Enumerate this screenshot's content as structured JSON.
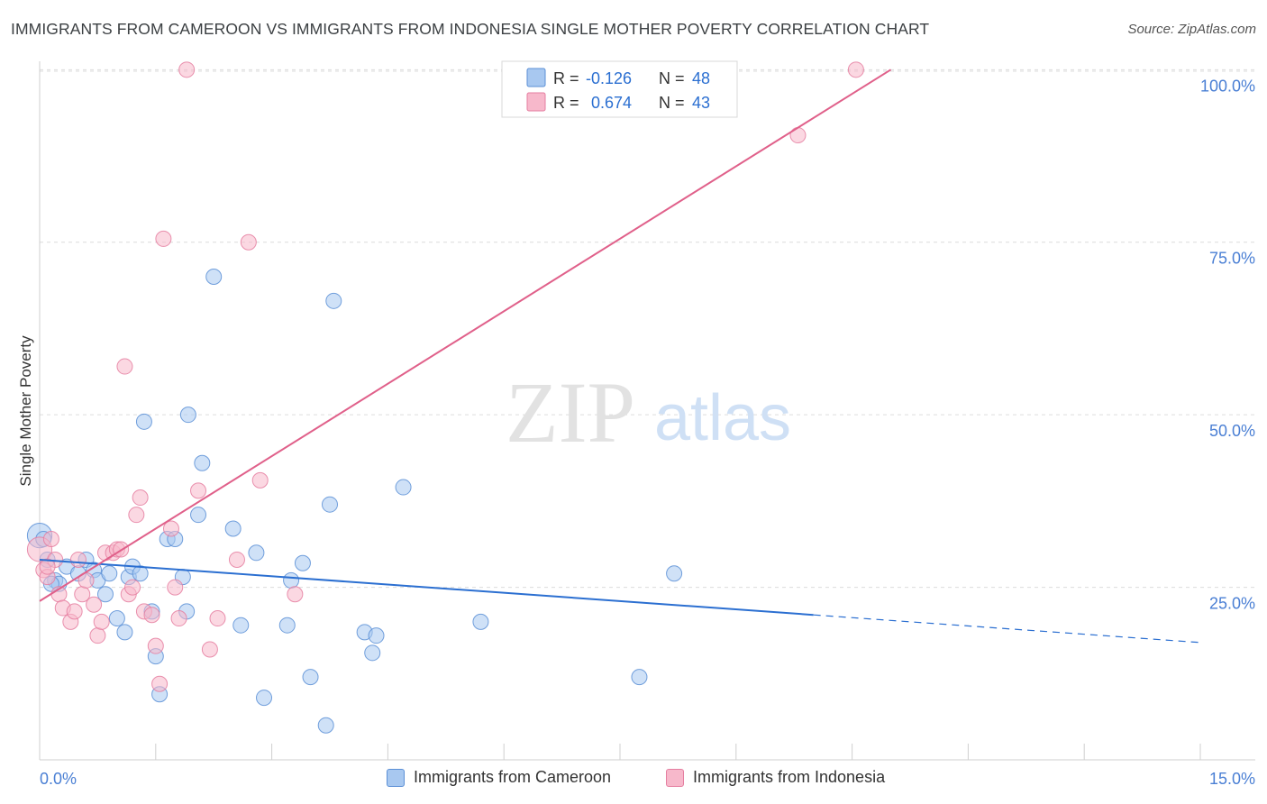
{
  "title": "IMMIGRANTS FROM CAMEROON VS IMMIGRANTS FROM INDONESIA SINGLE MOTHER POVERTY CORRELATION CHART",
  "source": "Source: ZipAtlas.com",
  "watermark": {
    "zip": "ZIP",
    "atlas": "atlas"
  },
  "colors": {
    "cameroon_fill": "#a8c8f0",
    "cameroon_stroke": "#5b8fd6",
    "cameroon_line": "#2b6fd1",
    "indonesia_fill": "#f7b8cb",
    "indonesia_stroke": "#e57ea0",
    "indonesia_line": "#e0608a",
    "tick_label": "#4a7fd4",
    "grid": "#dcdcdc"
  },
  "chart_data": {
    "type": "scatter",
    "title": "IMMIGRANTS FROM CAMEROON VS IMMIGRANTS FROM INDONESIA SINGLE MOTHER POVERTY CORRELATION CHART",
    "xlabel": "",
    "ylabel": "Single Mother Poverty",
    "xlim": [
      0,
      15
    ],
    "ylim": [
      0,
      102
    ],
    "x_tick_labels": [
      {
        "value": 0,
        "label": "0.0%"
      },
      {
        "value": 15,
        "label": "15.0%"
      }
    ],
    "y_ticks": [
      {
        "value": 25,
        "label": "25.0%"
      },
      {
        "value": 50,
        "label": "50.0%"
      },
      {
        "value": 75,
        "label": "75.0%"
      },
      {
        "value": 100,
        "label": "100.0%"
      }
    ],
    "legend": {
      "rows": [
        {
          "r_label": "R =",
          "r_value": "-0.126",
          "n_label": "N =",
          "n_value": "48"
        },
        {
          "r_label": "R =",
          "r_value": "0.674",
          "n_label": "N =",
          "n_value": "43"
        }
      ]
    },
    "series": [
      {
        "name": "Immigrants from Cameroon",
        "trend": {
          "x0": 0,
          "y0": 29.0,
          "x1": 10.0,
          "y1": 21.0,
          "dash_to_x": 15.0,
          "dash_to_y": 17.0
        },
        "points": [
          [
            0.0,
            32.5,
            1.6
          ],
          [
            0.05,
            32.0,
            1.0
          ],
          [
            0.1,
            29.0,
            1.0
          ],
          [
            0.2,
            26.0,
            1.0
          ],
          [
            0.25,
            25.5,
            1.0
          ],
          [
            0.35,
            28.0,
            1.0
          ],
          [
            0.5,
            27.0,
            1.0
          ],
          [
            0.6,
            29.0,
            1.0
          ],
          [
            0.7,
            27.5,
            1.0
          ],
          [
            0.75,
            26.0,
            1.0
          ],
          [
            0.85,
            24.0,
            1.0
          ],
          [
            0.9,
            27.0,
            1.0
          ],
          [
            1.0,
            20.5,
            1.0
          ],
          [
            1.1,
            18.5,
            1.0
          ],
          [
            1.15,
            26.5,
            1.0
          ],
          [
            1.2,
            28.0,
            1.0
          ],
          [
            1.3,
            27.0,
            1.0
          ],
          [
            1.35,
            49.0,
            1.0
          ],
          [
            1.45,
            21.5,
            1.0
          ],
          [
            1.5,
            15.0,
            1.0
          ],
          [
            1.55,
            9.5,
            1.0
          ],
          [
            1.65,
            32.0,
            1.0
          ],
          [
            1.75,
            32.0,
            1.0
          ],
          [
            1.85,
            26.5,
            1.0
          ],
          [
            1.9,
            21.5,
            1.0
          ],
          [
            1.92,
            50.0,
            1.0
          ],
          [
            2.05,
            35.5,
            1.0
          ],
          [
            2.1,
            43.0,
            1.0
          ],
          [
            2.25,
            70.0,
            1.0
          ],
          [
            2.5,
            33.5,
            1.0
          ],
          [
            2.6,
            19.5,
            1.0
          ],
          [
            2.8,
            30.0,
            1.0
          ],
          [
            2.9,
            9.0,
            1.0
          ],
          [
            3.2,
            19.5,
            1.0
          ],
          [
            3.25,
            26.0,
            1.0
          ],
          [
            3.4,
            28.5,
            1.0
          ],
          [
            3.5,
            12.0,
            1.0
          ],
          [
            3.7,
            5.0,
            1.0
          ],
          [
            3.75,
            37.0,
            1.0
          ],
          [
            3.8,
            66.5,
            1.0
          ],
          [
            4.2,
            18.5,
            1.0
          ],
          [
            4.3,
            15.5,
            1.0
          ],
          [
            4.35,
            18.0,
            1.0
          ],
          [
            4.7,
            39.5,
            1.0
          ],
          [
            5.7,
            20.0,
            1.0
          ],
          [
            7.75,
            12.0,
            1.0
          ],
          [
            8.2,
            27.0,
            1.0
          ],
          [
            0.15,
            25.5,
            1.0
          ]
        ]
      },
      {
        "name": "Immigrants from Indonesia",
        "trend": {
          "x0": 0,
          "y0": 23.0,
          "x1": 11.0,
          "y1": 100.0
        },
        "points": [
          [
            0.0,
            30.5,
            1.6
          ],
          [
            0.05,
            27.5,
            1.0
          ],
          [
            0.1,
            26.5,
            1.0
          ],
          [
            0.15,
            32.0,
            1.0
          ],
          [
            0.2,
            29.0,
            1.0
          ],
          [
            0.25,
            24.0,
            1.0
          ],
          [
            0.3,
            22.0,
            1.0
          ],
          [
            0.4,
            20.0,
            1.0
          ],
          [
            0.45,
            21.5,
            1.0
          ],
          [
            0.5,
            29.0,
            1.0
          ],
          [
            0.55,
            24.0,
            1.0
          ],
          [
            0.6,
            26.0,
            1.0
          ],
          [
            0.7,
            22.5,
            1.0
          ],
          [
            0.75,
            18.0,
            1.0
          ],
          [
            0.8,
            20.0,
            1.0
          ],
          [
            0.85,
            30.0,
            1.0
          ],
          [
            0.95,
            30.0,
            1.0
          ],
          [
            1.0,
            30.5,
            1.0
          ],
          [
            1.05,
            30.5,
            1.0
          ],
          [
            1.1,
            57.0,
            1.0
          ],
          [
            1.15,
            24.0,
            1.0
          ],
          [
            1.2,
            25.0,
            1.0
          ],
          [
            1.25,
            35.5,
            1.0
          ],
          [
            1.3,
            38.0,
            1.0
          ],
          [
            1.35,
            21.5,
            1.0
          ],
          [
            1.45,
            21.0,
            1.0
          ],
          [
            1.5,
            16.5,
            1.0
          ],
          [
            1.55,
            11.0,
            1.0
          ],
          [
            1.6,
            75.5,
            1.0
          ],
          [
            1.7,
            33.5,
            1.0
          ],
          [
            1.75,
            25.0,
            1.0
          ],
          [
            1.8,
            20.5,
            1.0
          ],
          [
            1.9,
            100.0,
            1.0
          ],
          [
            2.05,
            39.0,
            1.0
          ],
          [
            2.2,
            16.0,
            1.0
          ],
          [
            2.3,
            20.5,
            1.0
          ],
          [
            2.55,
            29.0,
            1.0
          ],
          [
            2.7,
            75.0,
            1.0
          ],
          [
            2.85,
            40.5,
            1.0
          ],
          [
            3.3,
            24.0,
            1.0
          ],
          [
            9.8,
            90.5,
            1.0
          ],
          [
            10.55,
            100.0,
            1.0
          ],
          [
            0.1,
            28.0,
            1.0
          ]
        ]
      }
    ]
  }
}
